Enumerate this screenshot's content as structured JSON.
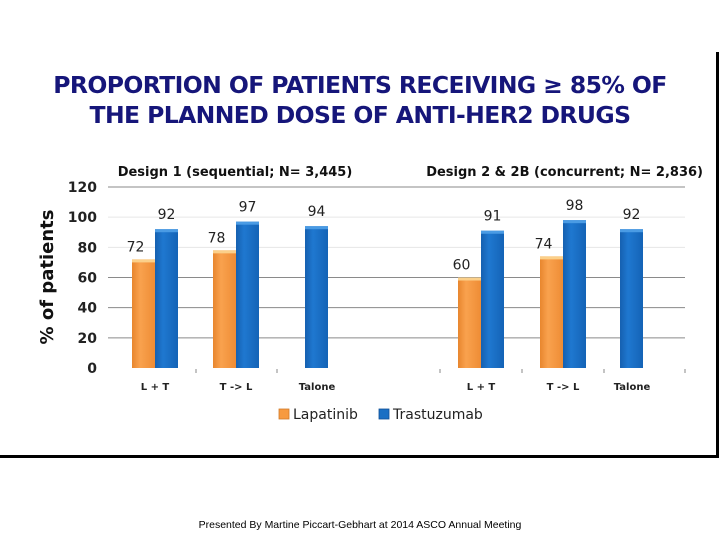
{
  "slide": {
    "title_line1": "PROPORTION OF PATIENTS RECEIVING ≥ 85% OF",
    "title_line2": "THE PLANNED DOSE OF ANTI-HER2 DRUGS",
    "footer": "Presented By Martine Piccart-Gebhart at 2014 ASCO Annual Meeting"
  },
  "colors": {
    "title": "#16167a",
    "lapatinib": "#f79a40",
    "trastuzumab": "#1a6fc4",
    "grid": "#808080"
  },
  "chart_data": {
    "type": "bar",
    "title": "PROPORTION OF PATIENTS RECEIVING ≥ 85% OF THE PLANNED DOSE OF ANTI-HER2 DRUGS",
    "xlabel": "",
    "ylabel": "% of patients",
    "ylim": [
      0,
      120
    ],
    "yticks": [
      0,
      20,
      40,
      60,
      80,
      100,
      120
    ],
    "grid": true,
    "legend_position": "bottom",
    "legend": [
      "Lapatinib",
      "Trastuzumab"
    ],
    "panels": [
      {
        "label": "Design 1 (sequential; N= 3,445)",
        "categories": [
          "L + T",
          "T -> L",
          "Talone"
        ],
        "series": [
          {
            "name": "Lapatinib",
            "values": [
              72,
              78,
              null
            ]
          },
          {
            "name": "Trastuzumab",
            "values": [
              92,
              97,
              94
            ]
          }
        ]
      },
      {
        "label": "Design 2 & 2B (concurrent; N= 2,836)",
        "categories": [
          "L + T",
          "T -> L",
          "Talone"
        ],
        "series": [
          {
            "name": "Lapatinib",
            "values": [
              60,
              74,
              null
            ]
          },
          {
            "name": "Trastuzumab",
            "values": [
              91,
              98,
              92
            ]
          }
        ]
      }
    ]
  }
}
